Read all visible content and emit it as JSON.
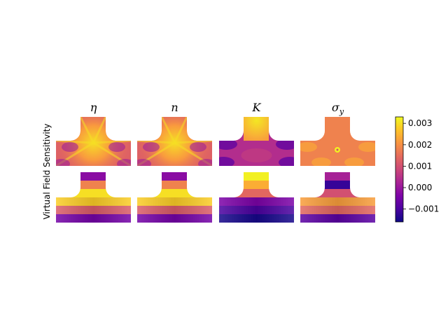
{
  "chart_data": {
    "type": "heatmap",
    "ylabel": "Virtual Field Sensitivity",
    "columns": [
      {
        "key": "eta",
        "title": "η",
        "title_sub": ""
      },
      {
        "key": "n",
        "title": "n",
        "title_sub": ""
      },
      {
        "key": "K",
        "title": "K",
        "title_sub": ""
      },
      {
        "key": "sigma_y",
        "title": "σ",
        "title_sub": "y"
      }
    ],
    "colormap": "plasma",
    "clim": [
      -0.0016,
      0.0033
    ],
    "colorbar": {
      "ticks": [
        -0.001,
        0.0,
        0.001,
        0.002,
        0.003
      ],
      "tick_labels": [
        "−0.001",
        "0.000",
        "0.001",
        "0.002",
        "0.003"
      ]
    },
    "rows": [
      {
        "panels": [
          {
            "pattern": "star",
            "base": 0.0013,
            "peak": 0.003,
            "low": 0.0
          },
          {
            "pattern": "star",
            "base": 0.0013,
            "peak": 0.003,
            "low": 0.0
          },
          {
            "pattern": "arch",
            "base": 0.0004,
            "peak": 0.0031,
            "low": -0.0008
          },
          {
            "pattern": "flat",
            "base": 0.0018,
            "peak": 0.0032,
            "low": 0.001
          }
        ]
      },
      {
        "panels": [
          {
            "bands_top": [
              -0.0002,
              0.0018,
              0.003
            ],
            "bands_bottom": [
              0.0028,
              0.0012,
              -0.0005
            ]
          },
          {
            "bands_top": [
              -0.0002,
              0.0018,
              0.003
            ],
            "bands_bottom": [
              0.0028,
              0.0012,
              -0.0005
            ]
          },
          {
            "bands_top": [
              0.0032,
              0.0024,
              0.0014
            ],
            "bands_bottom": [
              -0.0004,
              -0.001,
              -0.0015
            ]
          },
          {
            "bands_top": [
              0.0002,
              -0.0012,
              0.001
            ],
            "bands_bottom": [
              0.0022,
              0.0014,
              -0.0008
            ]
          }
        ]
      }
    ]
  }
}
